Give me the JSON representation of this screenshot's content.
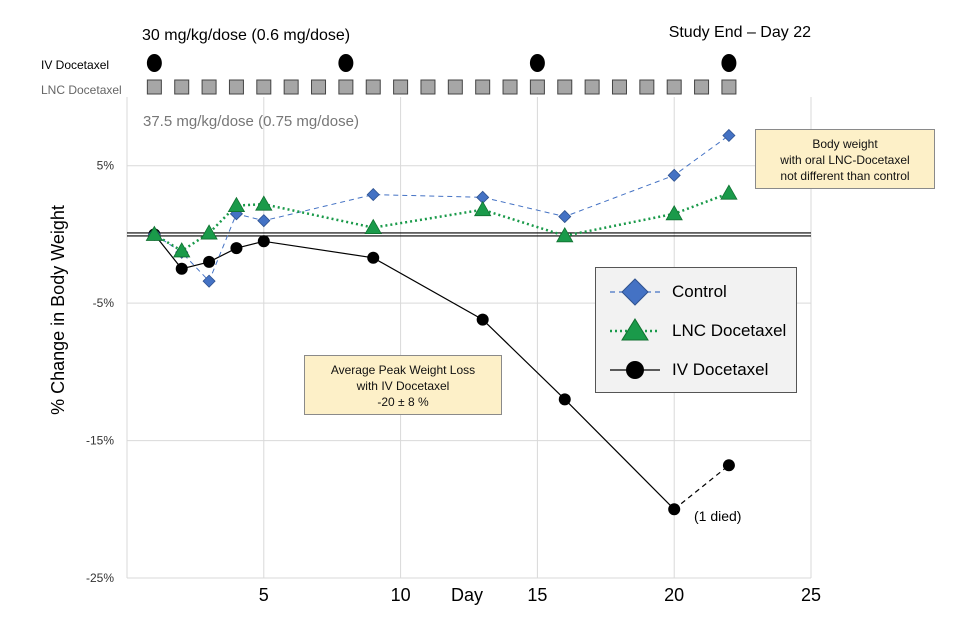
{
  "chart_data": {
    "type": "line",
    "title": "",
    "xlabel": "Day",
    "ylabel": "% Change in Body Weight",
    "xlim": [
      0,
      25
    ],
    "ylim": [
      -25,
      10
    ],
    "x_ticks": [
      5,
      10,
      15,
      20,
      25
    ],
    "y_ticks": [
      {
        "value": 5,
        "label": "5%"
      },
      {
        "value": -5,
        "label": "-5%"
      },
      {
        "value": -15,
        "label": "-15%"
      },
      {
        "value": -25,
        "label": "-25%"
      }
    ],
    "series": [
      {
        "name": "Control",
        "marker": "diamond",
        "line": "dashed",
        "color": "#4472c4",
        "points": [
          [
            1,
            0
          ],
          [
            2,
            -1.3
          ],
          [
            3,
            -3.4
          ],
          [
            4,
            1.5
          ],
          [
            5,
            1.0
          ],
          [
            9,
            2.9
          ],
          [
            13,
            2.7
          ],
          [
            16,
            1.3
          ],
          [
            20,
            4.3
          ],
          [
            22,
            7.2
          ]
        ]
      },
      {
        "name": "LNC Docetaxel",
        "marker": "triangle",
        "line": "dotted",
        "color": "#1a9a4a",
        "points": [
          [
            1,
            0
          ],
          [
            2,
            -1.2
          ],
          [
            3,
            0.1
          ],
          [
            4,
            2.1
          ],
          [
            5,
            2.2
          ],
          [
            9,
            0.5
          ],
          [
            13,
            1.8
          ],
          [
            16,
            -0.1
          ],
          [
            20,
            1.5
          ],
          [
            22,
            3.0
          ]
        ]
      },
      {
        "name": "IV Docetaxel",
        "marker": "circle",
        "line": "solid",
        "color": "#000000",
        "points": [
          [
            1,
            0
          ],
          [
            2,
            -2.5
          ],
          [
            3,
            -2.0
          ],
          [
            4,
            -1.0
          ],
          [
            5,
            -0.5
          ],
          [
            9,
            -1.7
          ],
          [
            13,
            -6.2
          ],
          [
            16,
            -12.0
          ],
          [
            20,
            -20.0
          ]
        ]
      }
    ],
    "died_segment": {
      "from": [
        20,
        -20.0
      ],
      "to": [
        22,
        -16.8
      ],
      "note": "(1 died)"
    },
    "baseline": 0,
    "legend_position": "right-middle"
  },
  "dosing": {
    "iv_label": "IV Docetaxel",
    "lnc_label": "LNC Docetaxel",
    "iv_dose_text": "30 mg/kg/dose (0.6 mg/dose)",
    "lnc_dose_text": "37.5 mg/kg/dose (0.75 mg/dose)",
    "study_end_text": "Study End – Day 22",
    "iv_days": [
      1,
      8,
      15,
      22
    ],
    "lnc_days": [
      1,
      2,
      3,
      4,
      5,
      6,
      7,
      8,
      9,
      10,
      11,
      12,
      13,
      14,
      15,
      16,
      17,
      18,
      19,
      20,
      21,
      22
    ]
  },
  "annotations": {
    "body_weight_note": [
      "Body weight",
      "with oral LNC-Docetaxel",
      "not different than control"
    ],
    "peak_loss_note": [
      "Average Peak Weight Loss",
      "with IV Docetaxel",
      "-20 ± 8 %"
    ]
  },
  "legend": {
    "items": [
      "Control",
      "LNC Docetaxel",
      "IV Docetaxel"
    ]
  }
}
